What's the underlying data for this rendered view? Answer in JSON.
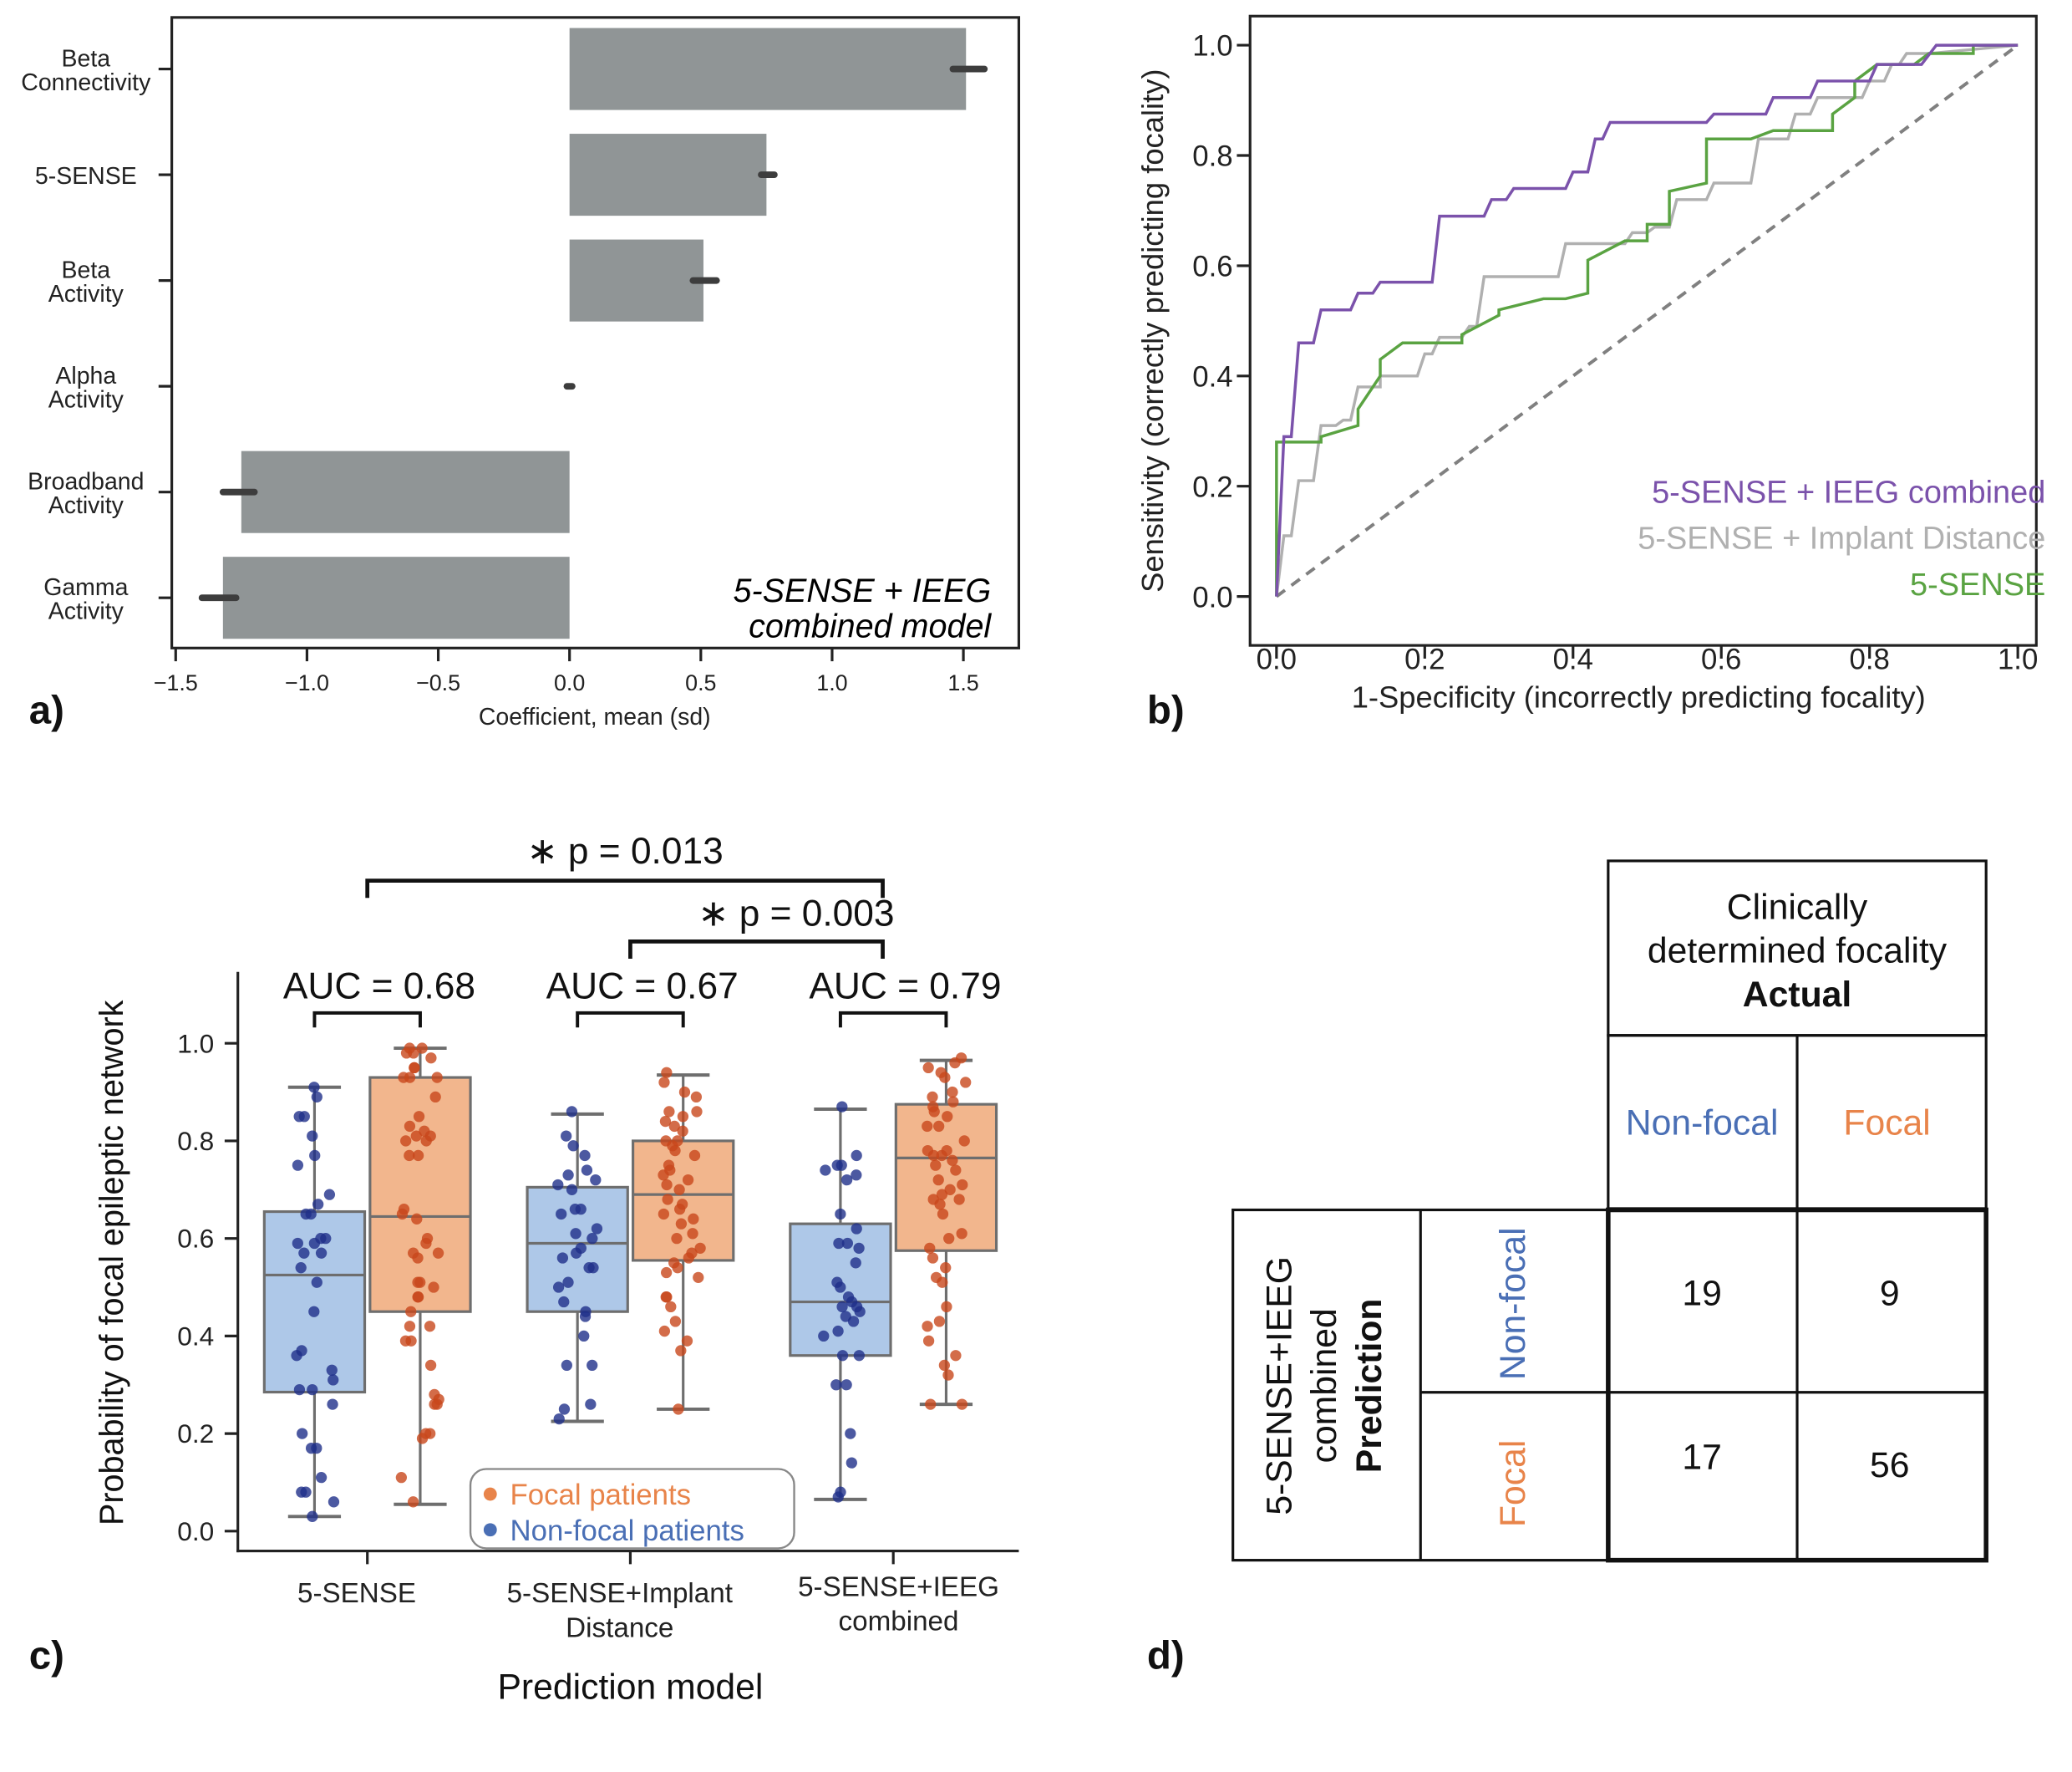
{
  "chart_data": [
    {
      "panel_label": "a)",
      "type": "bar",
      "orientation": "horizontal",
      "categories": [
        [
          "Beta",
          "Connectivity"
        ],
        [
          "5-SENSE"
        ],
        [
          "Beta",
          "Activity"
        ],
        [
          "Alpha",
          "Activity"
        ],
        [
          "Broadband",
          "Activity"
        ],
        [
          "Gamma",
          "Activity"
        ]
      ],
      "values": [
        1.51,
        0.75,
        0.51,
        0.0,
        -1.25,
        -1.32
      ],
      "error_low": [
        1.46,
        0.73,
        0.47,
        -0.01,
        -1.32,
        -1.4
      ],
      "error_high": [
        1.58,
        0.78,
        0.56,
        0.01,
        -1.2,
        -1.27
      ],
      "xlabel": "Coefficient, mean (sd)",
      "xlim": [
        -1.51,
        1.71
      ],
      "xticks": [
        "-1.5",
        "-1.0",
        "-0.5",
        "0.0",
        "0.5",
        "1.0",
        "1.5"
      ],
      "xtick_values": [
        -1.5,
        -1.0,
        -0.5,
        0.0,
        0.5,
        1.0,
        1.5
      ],
      "annotation": [
        "5-SENSE + IEEG",
        "combined model"
      ],
      "bar_color": "#909596",
      "error_color": "#3d3d3d"
    },
    {
      "panel_label": "b)",
      "type": "line",
      "xlabel": "1-Specificity (incorrectly predicting focality)",
      "ylabel": "Sensitivity (correctly predicting focality)",
      "xlim": [
        -0.04,
        1.03
      ],
      "ylim": [
        -0.04,
        1.05
      ],
      "ticks": [
        "0.0",
        "0.2",
        "0.4",
        "0.6",
        "0.8",
        "1.0"
      ],
      "tick_values": [
        0,
        0.2,
        0.4,
        0.6,
        0.8,
        1.0
      ],
      "legend_placement": "bottom-right",
      "series": [
        {
          "name": "5-SENSE + IEEG combined",
          "color": "#7b52ab",
          "points": [
            [
              0,
              0
            ],
            [
              0.01,
              0.29
            ],
            [
              0.02,
              0.29
            ],
            [
              0.03,
              0.46
            ],
            [
              0.05,
              0.46
            ],
            [
              0.06,
              0.52
            ],
            [
              0.1,
              0.52
            ],
            [
              0.11,
              0.55
            ],
            [
              0.13,
              0.55
            ],
            [
              0.14,
              0.57
            ],
            [
              0.21,
              0.57
            ],
            [
              0.22,
              0.69
            ],
            [
              0.28,
              0.69
            ],
            [
              0.29,
              0.72
            ],
            [
              0.31,
              0.72
            ],
            [
              0.32,
              0.74
            ],
            [
              0.39,
              0.74
            ],
            [
              0.4,
              0.77
            ],
            [
              0.42,
              0.77
            ],
            [
              0.43,
              0.83
            ],
            [
              0.44,
              0.83
            ],
            [
              0.45,
              0.86
            ],
            [
              0.58,
              0.86
            ],
            [
              0.59,
              0.875
            ],
            [
              0.66,
              0.875
            ],
            [
              0.67,
              0.905
            ],
            [
              0.72,
              0.905
            ],
            [
              0.73,
              0.935
            ],
            [
              0.8,
              0.935
            ],
            [
              0.81,
              0.965
            ],
            [
              0.87,
              0.965
            ],
            [
              0.89,
              1.0
            ],
            [
              1,
              1
            ]
          ]
        },
        {
          "name": "5-SENSE + Implant Distance",
          "color": "#b0b0b0",
          "points": [
            [
              0,
              0
            ],
            [
              0.01,
              0.11
            ],
            [
              0.02,
              0.11
            ],
            [
              0.03,
              0.21
            ],
            [
              0.05,
              0.21
            ],
            [
              0.06,
              0.31
            ],
            [
              0.08,
              0.31
            ],
            [
              0.09,
              0.32
            ],
            [
              0.1,
              0.32
            ],
            [
              0.11,
              0.38
            ],
            [
              0.14,
              0.38
            ],
            [
              0.14,
              0.4
            ],
            [
              0.19,
              0.4
            ],
            [
              0.2,
              0.44
            ],
            [
              0.21,
              0.44
            ],
            [
              0.22,
              0.47
            ],
            [
              0.25,
              0.47
            ],
            [
              0.26,
              0.49
            ],
            [
              0.27,
              0.49
            ],
            [
              0.28,
              0.58
            ],
            [
              0.38,
              0.58
            ],
            [
              0.39,
              0.64
            ],
            [
              0.47,
              0.64
            ],
            [
              0.48,
              0.66
            ],
            [
              0.5,
              0.66
            ],
            [
              0.51,
              0.67
            ],
            [
              0.53,
              0.67
            ],
            [
              0.54,
              0.72
            ],
            [
              0.58,
              0.72
            ],
            [
              0.59,
              0.75
            ],
            [
              0.64,
              0.75
            ],
            [
              0.65,
              0.83
            ],
            [
              0.69,
              0.83
            ],
            [
              0.7,
              0.875
            ],
            [
              0.72,
              0.875
            ],
            [
              0.73,
              0.905
            ],
            [
              0.79,
              0.905
            ],
            [
              0.8,
              0.935
            ],
            [
              0.82,
              0.935
            ],
            [
              0.83,
              0.965
            ],
            [
              0.84,
              0.965
            ],
            [
              0.85,
              0.985
            ],
            [
              0.88,
              0.985
            ],
            [
              1,
              1
            ]
          ]
        },
        {
          "name": "5-SENSE",
          "color": "#5aa342",
          "points": [
            [
              0,
              0
            ],
            [
              0,
              0.28
            ],
            [
              0.06,
              0.28
            ],
            [
              0.06,
              0.29
            ],
            [
              0.11,
              0.31
            ],
            [
              0.11,
              0.34
            ],
            [
              0.14,
              0.4
            ],
            [
              0.14,
              0.43
            ],
            [
              0.17,
              0.46
            ],
            [
              0.25,
              0.46
            ],
            [
              0.25,
              0.475
            ],
            [
              0.3,
              0.51
            ],
            [
              0.3,
              0.52
            ],
            [
              0.36,
              0.54
            ],
            [
              0.39,
              0.54
            ],
            [
              0.42,
              0.55
            ],
            [
              0.42,
              0.61
            ],
            [
              0.47,
              0.645
            ],
            [
              0.5,
              0.645
            ],
            [
              0.5,
              0.675
            ],
            [
              0.53,
              0.675
            ],
            [
              0.53,
              0.735
            ],
            [
              0.58,
              0.75
            ],
            [
              0.58,
              0.83
            ],
            [
              0.64,
              0.83
            ],
            [
              0.67,
              0.845
            ],
            [
              0.75,
              0.845
            ],
            [
              0.75,
              0.875
            ],
            [
              0.78,
              0.905
            ],
            [
              0.78,
              0.935
            ],
            [
              0.81,
              0.965
            ],
            [
              0.86,
              0.965
            ],
            [
              0.88,
              0.985
            ],
            [
              0.94,
              0.985
            ],
            [
              0.94,
              1.0
            ],
            [
              1,
              1
            ]
          ]
        },
        {
          "name": "",
          "color": "#808080",
          "style": "dashed",
          "points": [
            [
              0,
              0
            ],
            [
              1,
              1
            ]
          ]
        }
      ]
    },
    {
      "panel_label": "c)",
      "type": "box",
      "xlabel": "Prediction model",
      "ylabel": "Probability of focal epileptic network",
      "ylim": [
        -0.05,
        1.15
      ],
      "yticks": [
        "0.0",
        "0.2",
        "0.4",
        "0.6",
        "0.8",
        "1.0"
      ],
      "ytick_values": [
        0,
        0.2,
        0.4,
        0.6,
        0.8,
        1.0
      ],
      "categories": [
        [
          "5-SENSE"
        ],
        [
          "5-SENSE+Implant",
          "Distance"
        ],
        [
          "5-SENSE+IEEG",
          "combined"
        ]
      ],
      "auc_labels": [
        "AUC = 0.68",
        "AUC = 0.67",
        "AUC = 0.79"
      ],
      "comparisons": [
        {
          "label": "p = 0.013",
          "star": "∗",
          "from": 0,
          "to": 2
        },
        {
          "label": "p = 0.003",
          "star": "∗",
          "from": 1,
          "to": 2
        }
      ],
      "legend": [
        {
          "name": "Focal patients",
          "color": "#e8844a"
        },
        {
          "name": "Non-focal patients",
          "color": "#4a6fb5"
        }
      ],
      "legend_placement": "bottom-center",
      "box_colors": {
        "nonfocal": "#aec8e8",
        "focal": "#f2b68d"
      },
      "point_colors": {
        "nonfocal": "#1f2f8a",
        "focal": "#c8471c"
      },
      "groups": [
        {
          "nonfocal": {
            "min": 0.03,
            "q1": 0.285,
            "median": 0.525,
            "q3": 0.655,
            "max": 0.91,
            "points": [
              0.91,
              0.89,
              0.85,
              0.85,
              0.81,
              0.77,
              0.75,
              0.69,
              0.67,
              0.65,
              0.65,
              0.6,
              0.6,
              0.59,
              0.59,
              0.57,
              0.57,
              0.54,
              0.51,
              0.45,
              0.37,
              0.36,
              0.33,
              0.31,
              0.29,
              0.29,
              0.26,
              0.2,
              0.17,
              0.17,
              0.11,
              0.08,
              0.08,
              0.06,
              0.03
            ]
          },
          "focal": {
            "min": 0.055,
            "q1": 0.45,
            "median": 0.645,
            "q3": 0.93,
            "max": 0.99,
            "points": [
              0.99,
              0.99,
              0.98,
              0.98,
              0.97,
              0.95,
              0.95,
              0.93,
              0.93,
              0.93,
              0.89,
              0.85,
              0.83,
              0.82,
              0.81,
              0.81,
              0.8,
              0.8,
              0.77,
              0.77,
              0.66,
              0.65,
              0.64,
              0.6,
              0.59,
              0.57,
              0.57,
              0.56,
              0.51,
              0.51,
              0.5,
              0.48,
              0.48,
              0.45,
              0.42,
              0.42,
              0.39,
              0.39,
              0.34,
              0.28,
              0.27,
              0.26,
              0.26,
              0.2,
              0.2,
              0.19,
              0.11,
              0.06
            ]
          }
        },
        {
          "nonfocal": {
            "min": 0.225,
            "q1": 0.45,
            "median": 0.59,
            "q3": 0.705,
            "max": 0.855,
            "points": [
              0.86,
              0.81,
              0.79,
              0.77,
              0.74,
              0.73,
              0.72,
              0.71,
              0.7,
              0.66,
              0.66,
              0.65,
              0.62,
              0.61,
              0.6,
              0.58,
              0.57,
              0.56,
              0.54,
              0.54,
              0.51,
              0.5,
              0.47,
              0.45,
              0.44,
              0.4,
              0.34,
              0.34,
              0.26,
              0.25,
              0.23
            ]
          },
          "focal": {
            "min": 0.25,
            "q1": 0.555,
            "median": 0.69,
            "q3": 0.8,
            "max": 0.935,
            "points": [
              0.94,
              0.92,
              0.9,
              0.89,
              0.86,
              0.86,
              0.85,
              0.84,
              0.83,
              0.82,
              0.8,
              0.8,
              0.79,
              0.78,
              0.77,
              0.75,
              0.74,
              0.73,
              0.72,
              0.71,
              0.7,
              0.68,
              0.67,
              0.66,
              0.65,
              0.64,
              0.63,
              0.61,
              0.6,
              0.58,
              0.57,
              0.56,
              0.55,
              0.54,
              0.53,
              0.52,
              0.48,
              0.48,
              0.46,
              0.43,
              0.41,
              0.39,
              0.37,
              0.25
            ]
          }
        },
        {
          "nonfocal": {
            "min": 0.065,
            "q1": 0.36,
            "median": 0.47,
            "q3": 0.63,
            "max": 0.865,
            "points": [
              0.87,
              0.77,
              0.75,
              0.75,
              0.74,
              0.73,
              0.72,
              0.65,
              0.62,
              0.59,
              0.59,
              0.58,
              0.55,
              0.51,
              0.5,
              0.48,
              0.47,
              0.46,
              0.46,
              0.45,
              0.44,
              0.43,
              0.41,
              0.4,
              0.36,
              0.36,
              0.3,
              0.3,
              0.2,
              0.14,
              0.08,
              0.07
            ]
          },
          "focal": {
            "min": 0.26,
            "q1": 0.575,
            "median": 0.765,
            "q3": 0.875,
            "max": 0.965,
            "points": [
              0.97,
              0.96,
              0.95,
              0.94,
              0.93,
              0.92,
              0.9,
              0.89,
              0.88,
              0.87,
              0.86,
              0.85,
              0.83,
              0.83,
              0.8,
              0.78,
              0.78,
              0.77,
              0.77,
              0.76,
              0.75,
              0.74,
              0.72,
              0.71,
              0.7,
              0.69,
              0.68,
              0.68,
              0.67,
              0.65,
              0.61,
              0.6,
              0.58,
              0.56,
              0.54,
              0.52,
              0.51,
              0.46,
              0.43,
              0.42,
              0.39,
              0.36,
              0.34,
              0.32,
              0.26,
              0.26
            ]
          }
        }
      ]
    },
    {
      "panel_label": "d)",
      "type": "table",
      "actual_header": [
        "Clinically",
        "determined focality",
        "Actual"
      ],
      "prediction_header": [
        "5-SENSE+IEEG",
        "combined",
        "Prediction"
      ],
      "classes": [
        {
          "name": "Non-focal",
          "color": "#4a6fb5"
        },
        {
          "name": "Focal",
          "color": "#e8844a"
        }
      ],
      "matrix": [
        [
          "19",
          "9"
        ],
        [
          "17",
          "56"
        ]
      ]
    }
  ]
}
